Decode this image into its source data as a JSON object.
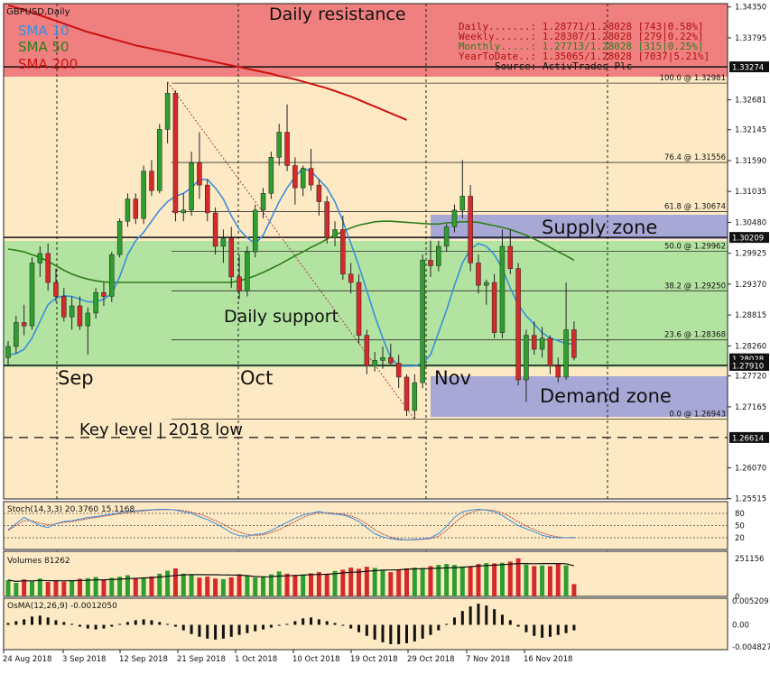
{
  "chart_data": [
    {
      "type": "candlestick",
      "symbol": "GBPUSD,Daily",
      "y_axis_ticks": [
        "1.34350",
        "1.33795",
        "1.32681",
        "1.32145",
        "1.31590",
        "1.31035",
        "1.30480",
        "1.29925",
        "1.29370",
        "1.28815",
        "1.28260",
        "1.27720",
        "1.27165",
        "1.26070",
        "1.25515"
      ],
      "ylim": [
        1.2551,
        1.3441
      ],
      "x_tick_labels": [
        "24 Aug 2018",
        "3 Sep 2018",
        "12 Sep 2018",
        "21 Sep 2018",
        "1 Oct 2018",
        "10 Oct 2018",
        "19 Oct 2018",
        "29 Oct 2018",
        "7 Nov 2018",
        "16 Nov 2018"
      ],
      "month_labels": [
        "Sep",
        "Oct",
        "Nov"
      ],
      "ohlc": [
        [
          1.2805,
          1.2835,
          1.2792,
          1.2825
        ],
        [
          1.2825,
          1.288,
          1.2812,
          1.2868
        ],
        [
          1.2868,
          1.29,
          1.2845,
          1.2862
        ],
        [
          1.2862,
          1.2985,
          1.2855,
          1.2975
        ],
        [
          1.2975,
          1.3005,
          1.295,
          1.2992
        ],
        [
          1.2992,
          1.301,
          1.2925,
          1.294
        ],
        [
          1.294,
          1.2965,
          1.2905,
          1.2915
        ],
        [
          1.2915,
          1.293,
          1.287,
          1.2878
        ],
        [
          1.2878,
          1.2915,
          1.2855,
          1.2898
        ],
        [
          1.2898,
          1.2915,
          1.2855,
          1.2862
        ],
        [
          1.2862,
          1.2895,
          1.281,
          1.2885
        ],
        [
          1.2885,
          1.293,
          1.2875,
          1.2922
        ],
        [
          1.2922,
          1.294,
          1.2898,
          1.2915
        ],
        [
          1.2915,
          1.2995,
          1.2905,
          1.299
        ],
        [
          1.299,
          1.3055,
          1.2985,
          1.305
        ],
        [
          1.305,
          1.31,
          1.304,
          1.309
        ],
        [
          1.309,
          1.31,
          1.3045,
          1.3055
        ],
        [
          1.3055,
          1.315,
          1.3045,
          1.314
        ],
        [
          1.314,
          1.316,
          1.3095,
          1.3105
        ],
        [
          1.3105,
          1.3225,
          1.31,
          1.3215
        ],
        [
          1.3215,
          1.33,
          1.319,
          1.328
        ],
        [
          1.328,
          1.3285,
          1.305,
          1.3065
        ],
        [
          1.3065,
          1.31,
          1.305,
          1.307
        ],
        [
          1.307,
          1.3175,
          1.306,
          1.3155
        ],
        [
          1.3155,
          1.321,
          1.309,
          1.3115
        ],
        [
          1.3115,
          1.3125,
          1.305,
          1.3065
        ],
        [
          1.3065,
          1.3075,
          1.299,
          1.3005
        ],
        [
          1.3005,
          1.3035,
          1.2975,
          1.302
        ],
        [
          1.302,
          1.304,
          1.293,
          1.295
        ],
        [
          1.295,
          1.299,
          1.291,
          1.2925
        ],
        [
          1.2925,
          1.3005,
          1.2915,
          1.2995
        ],
        [
          1.2995,
          1.308,
          1.2985,
          1.307
        ],
        [
          1.307,
          1.311,
          1.3055,
          1.31
        ],
        [
          1.31,
          1.3175,
          1.309,
          1.3165
        ],
        [
          1.3165,
          1.3225,
          1.315,
          1.321
        ],
        [
          1.321,
          1.326,
          1.314,
          1.315
        ],
        [
          1.315,
          1.3165,
          1.308,
          1.311
        ],
        [
          1.311,
          1.315,
          1.3095,
          1.3145
        ],
        [
          1.3145,
          1.318,
          1.3105,
          1.3115
        ],
        [
          1.3115,
          1.3125,
          1.306,
          1.3085
        ],
        [
          1.3085,
          1.3095,
          1.301,
          1.302
        ],
        [
          1.302,
          1.305,
          1.3005,
          1.3035
        ],
        [
          1.3035,
          1.306,
          1.2945,
          1.2955
        ],
        [
          1.2955,
          1.2975,
          1.292,
          1.294
        ],
        [
          1.294,
          1.2955,
          1.283,
          1.2845
        ],
        [
          1.2845,
          1.2855,
          1.2775,
          1.279
        ],
        [
          1.279,
          1.2815,
          1.278,
          1.28
        ],
        [
          1.28,
          1.2825,
          1.2785,
          1.2805
        ],
        [
          1.2805,
          1.283,
          1.279,
          1.2795
        ],
        [
          1.2795,
          1.281,
          1.275,
          1.277
        ],
        [
          1.277,
          1.2775,
          1.27,
          1.271
        ],
        [
          1.271,
          1.2775,
          1.2695,
          1.276
        ],
        [
          1.276,
          1.299,
          1.275,
          1.298
        ],
        [
          1.298,
          1.3015,
          1.295,
          1.297
        ],
        [
          1.297,
          1.3015,
          1.296,
          1.3005
        ],
        [
          1.3005,
          1.3045,
          1.2995,
          1.304
        ],
        [
          1.304,
          1.308,
          1.303,
          1.307
        ],
        [
          1.307,
          1.316,
          1.3055,
          1.3095
        ],
        [
          1.3095,
          1.3115,
          1.296,
          1.2975
        ],
        [
          1.2975,
          1.299,
          1.292,
          1.2935
        ],
        [
          1.2935,
          1.2945,
          1.29,
          1.294
        ],
        [
          1.294,
          1.2955,
          1.284,
          1.285
        ],
        [
          1.285,
          1.3035,
          1.284,
          1.3005
        ],
        [
          1.3005,
          1.3035,
          1.2955,
          1.2965
        ],
        [
          1.2965,
          1.2975,
          1.2755,
          1.2765
        ],
        [
          1.2765,
          1.2855,
          1.2725,
          1.2845
        ],
        [
          1.2845,
          1.287,
          1.281,
          1.282
        ],
        [
          1.282,
          1.286,
          1.2805,
          1.284
        ],
        [
          1.284,
          1.2845,
          1.2775,
          1.279
        ],
        [
          1.279,
          1.2805,
          1.276,
          1.277
        ],
        [
          1.277,
          1.294,
          1.2765,
          1.2855
        ],
        [
          1.2855,
          1.287,
          1.28,
          1.2805
        ]
      ],
      "sma10": [
        1.281,
        1.2812,
        1.282,
        1.284,
        1.287,
        1.29,
        1.2912,
        1.2916,
        1.2915,
        1.291,
        1.2905,
        1.2905,
        1.291,
        1.292,
        1.295,
        1.299,
        1.3015,
        1.303,
        1.305,
        1.307,
        1.3085,
        1.3095,
        1.31,
        1.311,
        1.3125,
        1.3125,
        1.311,
        1.309,
        1.306,
        1.3035,
        1.302,
        1.301,
        1.3025,
        1.3055,
        1.3085,
        1.311,
        1.313,
        1.3145,
        1.314,
        1.3125,
        1.311,
        1.3085,
        1.305,
        1.301,
        1.297,
        1.2925,
        1.288,
        1.284,
        1.2805,
        1.279,
        1.279,
        1.279,
        1.2795,
        1.281,
        1.285,
        1.289,
        1.2935,
        1.2975,
        1.3,
        1.301,
        1.3005,
        1.299,
        1.2965,
        1.293,
        1.29,
        1.288,
        1.2865,
        1.285,
        1.284,
        1.2835,
        1.283,
        1.283
      ],
      "sma50": [
        1.3,
        1.2998,
        1.2995,
        1.299,
        1.2985,
        1.2978,
        1.297,
        1.2962,
        1.2955,
        1.295,
        1.2946,
        1.2943,
        1.2941,
        1.294,
        1.294,
        1.294,
        1.294,
        1.294,
        1.294,
        1.294,
        1.294,
        1.294,
        1.294,
        1.294,
        1.294,
        1.294,
        1.294,
        1.294,
        1.294,
        1.2943,
        1.2947,
        1.2952,
        1.2958,
        1.2965,
        1.2972,
        1.298,
        1.2988,
        1.2995,
        1.3003,
        1.301,
        1.3018,
        1.3025,
        1.3032,
        1.3038,
        1.3043,
        1.3046,
        1.3049,
        1.305,
        1.305,
        1.3049,
        1.3048,
        1.3047,
        1.3046,
        1.3045,
        1.3045,
        1.3047,
        1.3048,
        1.3049,
        1.3049,
        1.3048,
        1.3045,
        1.3042,
        1.3039,
        1.3035,
        1.303,
        1.3025,
        1.3018,
        1.3011,
        1.3003,
        1.2995,
        1.2988,
        1.298
      ],
      "sma200": [
        1.3438,
        1.3434,
        1.343,
        1.3425,
        1.342,
        1.3415,
        1.341,
        1.3405,
        1.34,
        1.3395,
        1.339,
        1.3386,
        1.3382,
        1.3378,
        1.3374,
        1.337,
        1.3366,
        1.3363,
        1.336,
        1.3357,
        1.3354,
        1.3351,
        1.3348,
        1.3345,
        1.3342,
        1.3339,
        1.3336,
        1.3333,
        1.333,
        1.3327,
        1.3324,
        1.3321,
        1.3318,
        1.3315,
        1.3311,
        1.3308,
        1.3305,
        1.3301,
        1.3297,
        1.3293,
        1.3289,
        1.3284,
        1.3279,
        1.3274,
        1.3268,
        1.3262,
        1.3256,
        1.325,
        1.3244,
        1.3238,
        1.3232
      ],
      "legend": [
        {
          "name": "SMA 10",
          "color": "#3a8edc"
        },
        {
          "name": "SMA 50",
          "color": "#2e7d1a"
        },
        {
          "name": "SMA 200",
          "color": "#cc1010"
        }
      ],
      "annotations": {
        "daily_resistance": "Daily resistance",
        "daily_support": "Daily support",
        "supply_zone": "Supply zone",
        "demand_zone": "Demand zone",
        "key_level": "Key level | 2018 low"
      },
      "fib_levels": [
        {
          "label": "100.0 @ 1.32981",
          "value": 1.32981
        },
        {
          "label": "76.4 @ 1.31556",
          "value": 1.31556
        },
        {
          "label": "61.8 @ 1.30674",
          "value": 1.30674
        },
        {
          "label": "50.0 @ 1.29962",
          "value": 1.29962
        },
        {
          "label": "38.2 @ 1.29250",
          "value": 1.2925
        },
        {
          "label": "23.6 @ 1.28368",
          "value": 1.28368
        },
        {
          "label": "0.0 @ 1.26943",
          "value": 1.26943
        }
      ],
      "level_tags": [
        {
          "label": "1.33274",
          "value": 1.33274
        },
        {
          "label": "1.30209",
          "value": 1.30209
        },
        {
          "label": "1.28028",
          "value": 1.28028
        },
        {
          "label": "1.27910",
          "value": 1.2791
        },
        {
          "label": "1.26614",
          "value": 1.26614
        }
      ],
      "stats_box": {
        "rows": [
          {
            "text": "Daily.......: 1.28771/1.28028 [743|0.58%]",
            "color": "#b01010"
          },
          {
            "text": "Weekly......: 1.28307/1.28028 [279|0.22%]",
            "color": "#b01010"
          },
          {
            "text": "Monthly.....: 1.27713/1.28028 [315|0.25%]",
            "color": "#2e7d1a"
          },
          {
            "text": "YearToDate..: 1.35065/1.28028 [7037|5.21%]",
            "color": "#b01010"
          }
        ],
        "source": "Source: ActivTrades Plc"
      },
      "colors": {
        "background": "#fdeac4",
        "bull": "#2e9e2e",
        "bear": "#d42a2a",
        "resistance_zone": "#f08080",
        "support_zone": "#b3e3a0",
        "supply_demand_zone": "#a8a8d6"
      }
    },
    {
      "type": "line",
      "name": "Stoch(14,3,3) 20.3760 15.1168",
      "ticks": [
        "80",
        "50",
        "20"
      ],
      "main": [
        40,
        55,
        70,
        60,
        50,
        45,
        55,
        60,
        62,
        66,
        70,
        72,
        75,
        78,
        82,
        85,
        86,
        88,
        89,
        90,
        90,
        88,
        84,
        80,
        72,
        65,
        55,
        45,
        32,
        25,
        24,
        28,
        30,
        38,
        48,
        58,
        68,
        76,
        80,
        85,
        80,
        78,
        76,
        70,
        60,
        45,
        30,
        22,
        18,
        15,
        15,
        16,
        17,
        20,
        30,
        48,
        70,
        84,
        88,
        90,
        88,
        84,
        75,
        62,
        50,
        42,
        35,
        26,
        22,
        20,
        20,
        21
      ],
      "signal": [
        38,
        50,
        62,
        62,
        56,
        52,
        54,
        58,
        60,
        63,
        67,
        70,
        73,
        76,
        79,
        82,
        84,
        86,
        88,
        89,
        89,
        89,
        87,
        83,
        78,
        71,
        62,
        53,
        42,
        34,
        28,
        26,
        27,
        33,
        40,
        50,
        60,
        70,
        77,
        82,
        82,
        80,
        78,
        74,
        66,
        54,
        40,
        29,
        22,
        17,
        15,
        15,
        16,
        18,
        24,
        38,
        56,
        72,
        82,
        88,
        89,
        87,
        81,
        71,
        59,
        49,
        40,
        32,
        26,
        22,
        20,
        20
      ]
    },
    {
      "type": "bar",
      "name": "Volumes 81262",
      "ticks": [
        "251156",
        "0"
      ],
      "ylim": [
        0,
        280000
      ],
      "values": [
        108000,
        90000,
        112000,
        100000,
        118000,
        95000,
        104000,
        98000,
        106000,
        116000,
        120000,
        128000,
        112000,
        122000,
        130000,
        140000,
        118000,
        126000,
        132000,
        150000,
        170000,
        185000,
        150000,
        142000,
        124000,
        130000,
        118000,
        114000,
        126000,
        146000,
        138000,
        124000,
        132000,
        146000,
        165000,
        150000,
        142000,
        138000,
        152000,
        160000,
        150000,
        168000,
        176000,
        190000,
        182000,
        196000,
        188000,
        174000,
        160000,
        176000,
        185000,
        190000,
        188000,
        200000,
        208000,
        214000,
        208000,
        198000,
        196000,
        214000,
        220000,
        218000,
        222000,
        230000,
        251156,
        210000,
        200000,
        205000,
        200000,
        215000,
        205000,
        81262
      ]
    },
    {
      "type": "bar",
      "name": "OsMA(12,26,9) -0.0012050",
      "ticks": [
        "0.005209",
        "0.00",
        "-0.004827"
      ],
      "ylim": [
        -0.005,
        0.0052
      ],
      "values": [
        0.0004,
        0.0008,
        0.0012,
        0.0018,
        0.002,
        0.0016,
        0.001,
        0.0006,
        0.0002,
        -0.0004,
        -0.0008,
        -0.001,
        -0.0008,
        -0.0004,
        0.0002,
        0.0006,
        0.001,
        0.0012,
        0.001,
        0.0006,
        0.0002,
        -0.0004,
        -0.0012,
        -0.002,
        -0.0026,
        -0.003,
        -0.0032,
        -0.003,
        -0.0026,
        -0.0022,
        -0.0018,
        -0.0014,
        -0.001,
        -0.0006,
        -0.0002,
        0.0002,
        0.0008,
        0.0014,
        0.0016,
        0.0012,
        0.0008,
        0.0004,
        -0.0002,
        -0.0008,
        -0.0016,
        -0.0024,
        -0.0032,
        -0.0038,
        -0.0042,
        -0.0042,
        -0.004,
        -0.0036,
        -0.003,
        -0.0022,
        -0.0012,
        0.0002,
        0.0016,
        0.003,
        0.004,
        0.0046,
        0.0042,
        0.0034,
        0.0022,
        0.001,
        -0.0004,
        -0.0016,
        -0.0024,
        -0.0028,
        -0.0026,
        -0.0022,
        -0.0018,
        -0.0012
      ]
    }
  ]
}
